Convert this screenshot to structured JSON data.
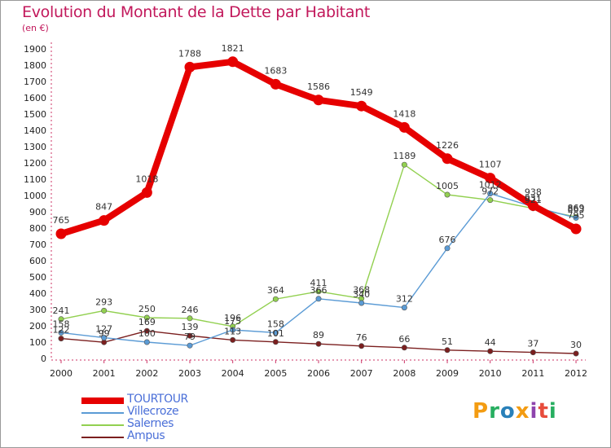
{
  "title": "Evolution du Montant de la Dette par Habitant",
  "subtitle": "(en €)",
  "logo": {
    "text": "Proxiti",
    "letters": [
      {
        "ch": "P",
        "color": "#f39c12"
      },
      {
        "ch": "r",
        "color": "#27ae60"
      },
      {
        "ch": "o",
        "color": "#2980b9"
      },
      {
        "ch": "x",
        "color": "#f39c12"
      },
      {
        "ch": "i",
        "color": "#8e44ad"
      },
      {
        "ch": "t",
        "color": "#e74c3c"
      },
      {
        "ch": "i",
        "color": "#27ae60"
      }
    ]
  },
  "chart_data": {
    "type": "line",
    "x": [
      "2000",
      "2001",
      "2002",
      "2003",
      "2004",
      "2005",
      "2006",
      "2007",
      "2008",
      "2009",
      "2010",
      "2011",
      "2012"
    ],
    "ylim": [
      0,
      1900
    ],
    "yticks": [
      0,
      100,
      200,
      300,
      400,
      500,
      600,
      700,
      800,
      900,
      1000,
      1100,
      1200,
      1300,
      1400,
      1500,
      1600,
      1700,
      1800,
      1900
    ],
    "grid": false,
    "legend_position": "bottom-left",
    "series": [
      {
        "name": "TOURTOUR",
        "color": "#e60000",
        "values": [
          765,
          847,
          1018,
          1788,
          1821,
          1683,
          1586,
          1549,
          1418,
          1226,
          1107,
          938,
          795
        ]
      },
      {
        "name": "Villecroze",
        "color": "#5b9bd5",
        "values": [
          158,
          127,
          100,
          79,
          175,
          158,
          366,
          340,
          312,
          676,
          1012,
          931,
          863
        ]
      },
      {
        "name": "Salernes",
        "color": "#92d050",
        "values": [
          241,
          293,
          250,
          246,
          196,
          364,
          411,
          368,
          1189,
          1005,
          972,
          921,
          869
        ]
      },
      {
        "name": "Ampus",
        "color": "#7b1f1f",
        "values": [
          122,
          99,
          169,
          139,
          113,
          101,
          89,
          76,
          66,
          51,
          44,
          37,
          30
        ]
      }
    ]
  }
}
